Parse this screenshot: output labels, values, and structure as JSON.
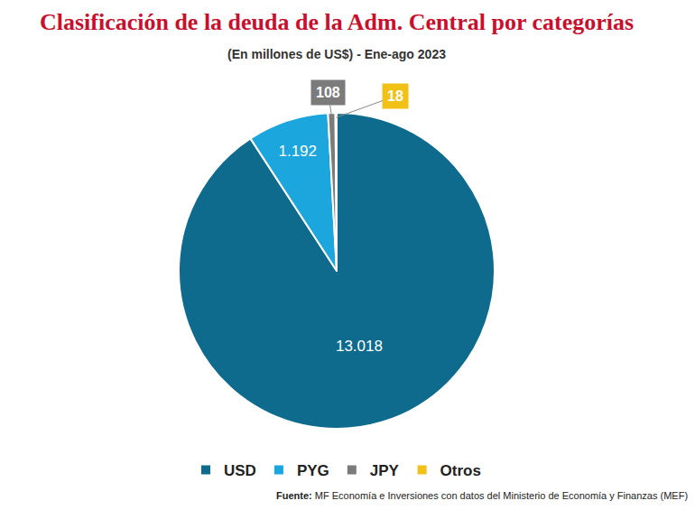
{
  "chart_data": {
    "type": "pie",
    "title": "Clasificación de la deuda de la Adm. Central por categorías",
    "subtitle": "(En millones de US$) - Ene-ago 2023",
    "categories": [
      "USD",
      "PYG",
      "JPY",
      "Otros"
    ],
    "values": [
      13018,
      1192,
      108,
      18
    ],
    "value_labels": [
      "13.018",
      "1.192",
      "108",
      "18"
    ],
    "colors": [
      "#0f6b8e",
      "#1ba6de",
      "#7b7b7b",
      "#f2c116"
    ],
    "data_labels": true,
    "legend": "bottom",
    "source": "Fuente: MF Economía e Inversiones con datos del Ministerio de Economía y Finanzas (MEF)"
  }
}
